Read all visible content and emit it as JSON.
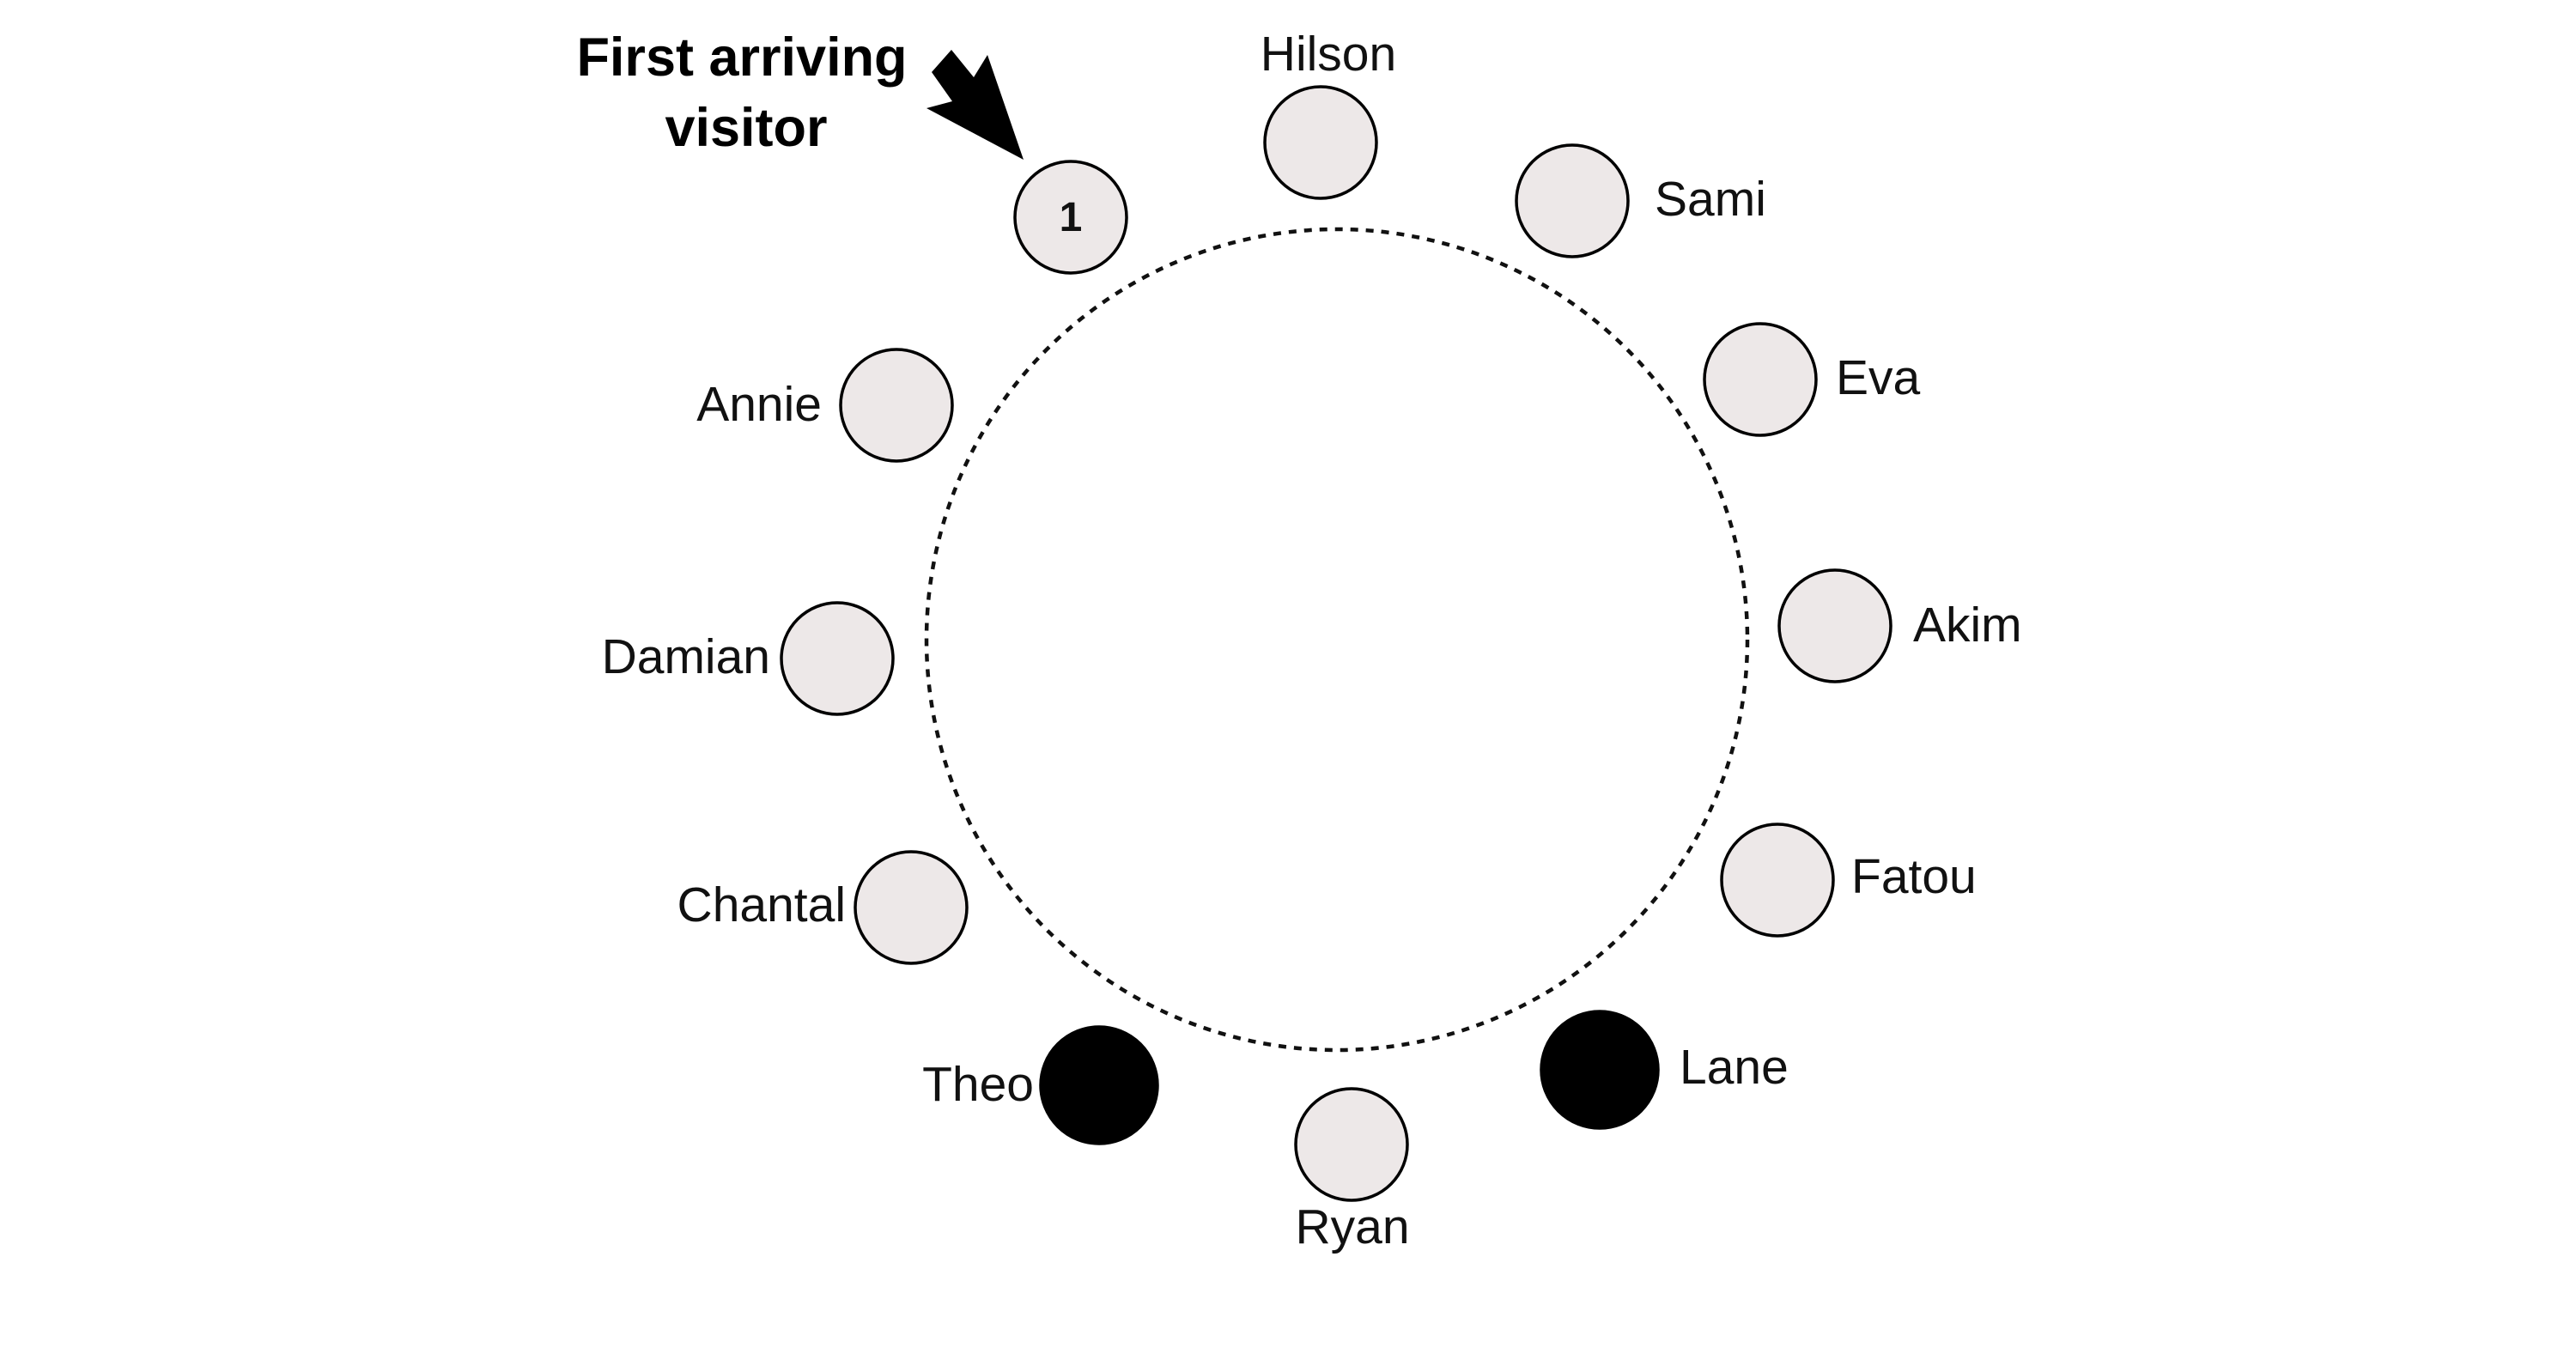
{
  "annotation": {
    "line1": "First arriving",
    "line2": "visitor"
  },
  "seats": [
    {
      "id": "seat-1",
      "name": "",
      "number": "1",
      "filled": false
    },
    {
      "id": "seat-hilson",
      "name": "Hilson",
      "number": "",
      "filled": false
    },
    {
      "id": "seat-sami",
      "name": "Sami",
      "number": "",
      "filled": false
    },
    {
      "id": "seat-eva",
      "name": "Eva",
      "number": "",
      "filled": false
    },
    {
      "id": "seat-akim",
      "name": "Akim",
      "number": "",
      "filled": false
    },
    {
      "id": "seat-fatou",
      "name": "Fatou",
      "number": "",
      "filled": false
    },
    {
      "id": "seat-lane",
      "name": "Lane",
      "number": "",
      "filled": true
    },
    {
      "id": "seat-ryan",
      "name": "Ryan",
      "number": "",
      "filled": false
    },
    {
      "id": "seat-theo",
      "name": "Theo",
      "number": "",
      "filled": true
    },
    {
      "id": "seat-chantal",
      "name": "Chantal",
      "number": "",
      "filled": false
    },
    {
      "id": "seat-damian",
      "name": "Damian",
      "number": "",
      "filled": false
    },
    {
      "id": "seat-annie",
      "name": "Annie",
      "number": "",
      "filled": false
    }
  ],
  "colors": {
    "seat_empty": "#ede8e8",
    "seat_filled": "#000000",
    "outline": "#000000"
  }
}
